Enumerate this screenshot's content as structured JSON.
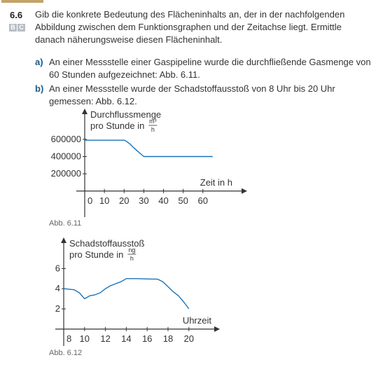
{
  "task": {
    "number": "6.6",
    "badges": [
      "B",
      "C"
    ],
    "intro_lines": [
      "Gib die konkrete Bedeutung des Flächeninhalts an, der in der nachfolgenden",
      "Abbildung zwischen dem Funktionsgraphen und der Zeitachse liegt. Ermittle",
      "danach näherungsweise diesen Flächeninhalt."
    ],
    "items": [
      {
        "label": "a)",
        "lines": [
          "An einer Messstelle einer Gaspipeline wurde die durchfließende Gasmenge von",
          "60 Stunden aufgezeichnet: Abb. 6.11."
        ]
      },
      {
        "label": "b)",
        "lines": [
          "An einer Messstelle wurde der Schadstoffausstoß von 8 Uhr bis 20 Uhr",
          "gemessen: Abb. 6.12."
        ]
      }
    ]
  },
  "colors": {
    "line": "#1a73b8",
    "axis": "#333333",
    "label_blue": "#1a5a8a"
  },
  "chart_data": [
    {
      "type": "line",
      "caption": "Abb. 6.11",
      "ylabel_line1": "Durchflussmenge",
      "ylabel_line2": "pro Stunde in",
      "yunit_num": "m³",
      "yunit_den": "h",
      "xlabel": "Zeit in h",
      "x_ticks": [
        "0",
        "10",
        "20",
        "30",
        "40",
        "50",
        "60"
      ],
      "x_tick_values": [
        0,
        10,
        20,
        30,
        40,
        50,
        60
      ],
      "y_ticks": [
        "600000",
        "400000",
        "200000"
      ],
      "y_tick_values": [
        600000,
        400000,
        200000
      ],
      "xlim": [
        0,
        80
      ],
      "ylim": [
        -270000,
        900000
      ],
      "series": [
        {
          "x": [
            0,
            20,
            21,
            23,
            25,
            27,
            29,
            30,
            32,
            65
          ],
          "y": [
            590000,
            590000,
            580000,
            545000,
            500000,
            460000,
            420000,
            400000,
            400000,
            400000
          ]
        }
      ]
    },
    {
      "type": "line",
      "caption": "Abb. 6.12",
      "ylabel_line1": "Schadstoffausstoß",
      "ylabel_line2": "pro Stunde in",
      "yunit_num": "ng",
      "yunit_den": "h",
      "xlabel": "Uhrzeit",
      "x_ticks": [
        "8",
        "10",
        "12",
        "14",
        "16",
        "18",
        "20"
      ],
      "x_tick_values": [
        8,
        10,
        12,
        14,
        16,
        18,
        20
      ],
      "y_ticks": [
        "6",
        "4",
        "2"
      ],
      "y_tick_values": [
        6,
        4,
        2
      ],
      "xlim": [
        8,
        22.5
      ],
      "ylim": [
        -1.4,
        8.6
      ],
      "series": [
        {
          "x": [
            8,
            9,
            9.5,
            10,
            10.5,
            11,
            11.5,
            12,
            12.5,
            13,
            13.5,
            14,
            14.5,
            15,
            16,
            17,
            17.5,
            18,
            18.5,
            19,
            19.5,
            20
          ],
          "y": [
            4.0,
            3.9,
            3.6,
            3.0,
            3.3,
            3.4,
            3.6,
            4.0,
            4.3,
            4.5,
            4.7,
            5.0,
            5.0,
            5.0,
            4.97,
            4.95,
            4.7,
            4.2,
            3.7,
            3.3,
            2.7,
            2.0
          ]
        }
      ]
    }
  ]
}
